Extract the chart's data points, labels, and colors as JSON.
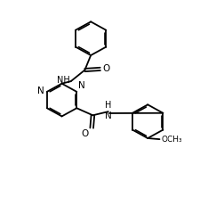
{
  "bg_color": "#ffffff",
  "line_color": "#000000",
  "lw": 1.3,
  "fs": 6.5,
  "xlim": [
    0,
    10
  ],
  "ylim": [
    0,
    10
  ],
  "figsize": [
    2.43,
    2.31
  ],
  "dpi": 100
}
